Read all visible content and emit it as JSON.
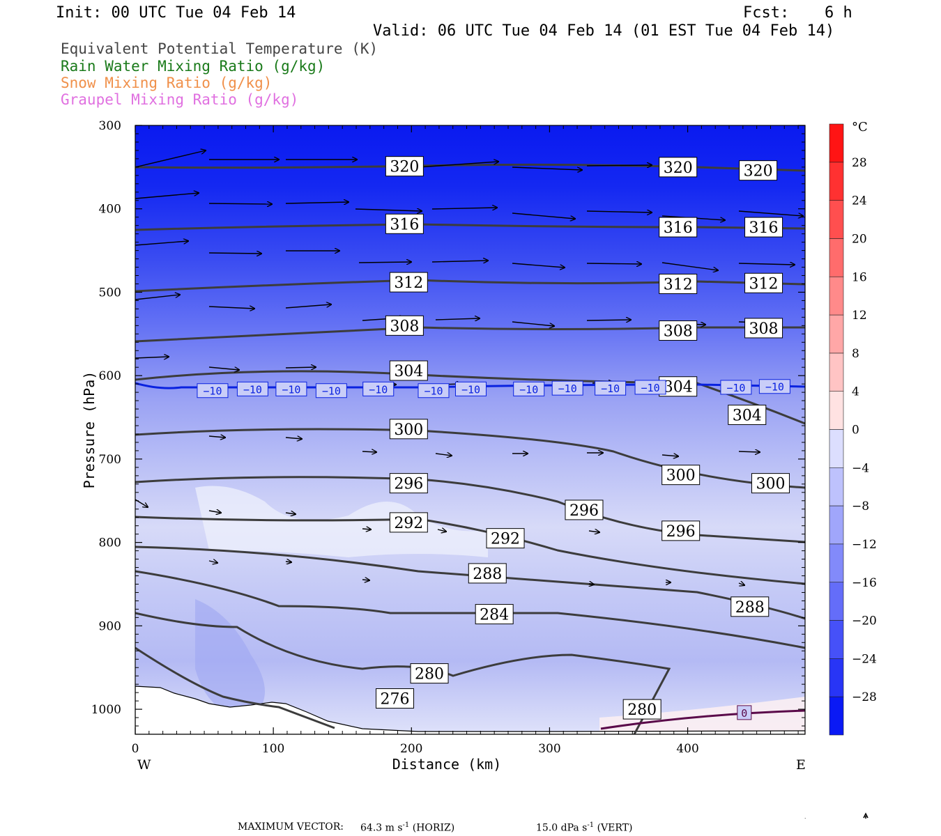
{
  "header": {
    "init": "Init: 00 UTC Tue 04 Feb 14",
    "fcst_label": "Fcst:",
    "fcst_value": "6 h",
    "valid": "Valid: 06 UTC Tue 04 Feb 14 (01 EST Tue 04 Feb 14)"
  },
  "fields": [
    {
      "label": "Equivalent Potential Temperature (K)",
      "color": "#444444"
    },
    {
      "label": "Rain Water Mixing Ratio (g/kg)",
      "color": "#1a7a1a"
    },
    {
      "label": "Snow Mixing Ratio (g/kg)",
      "color": "#f0904a"
    },
    {
      "label": "Graupel Mixing Ratio (g/kg)",
      "color": "#e070e0"
    }
  ],
  "footer": {
    "max_label": "MAXIMUM VECTOR:",
    "horiz_value": "64.3 m s",
    "horiz_exp": "-1",
    "horiz_suffix": "(HORIZ)",
    "vert_value": "15.0 dPa s",
    "vert_exp": "-1",
    "vert_suffix": "(VERT)"
  },
  "chart_data": {
    "type": "cross-section",
    "xlabel": "Distance (km)",
    "ylabel": "Pressure (hPa)",
    "xlim": [
      0,
      485
    ],
    "ylim": [
      1030,
      300
    ],
    "x_ticks": [
      0,
      100,
      200,
      300,
      400
    ],
    "y_ticks": [
      300,
      400,
      500,
      600,
      700,
      800,
      900,
      1000
    ],
    "left_end": "W",
    "right_end": "E",
    "colorbar": {
      "unit": "°C",
      "ticks": [
        "28",
        "24",
        "20",
        "16",
        "12",
        "8",
        "4",
        "0",
        "−4",
        "−8",
        "−12",
        "−16",
        "−20",
        "−24",
        "−28"
      ],
      "range": [
        -32,
        32
      ]
    },
    "theta_e_labels": [
      {
        "text": "320",
        "x": 195,
        "p": 349
      },
      {
        "text": "320",
        "x": 393,
        "p": 350
      },
      {
        "text": "320",
        "x": 451,
        "p": 354
      },
      {
        "text": "316",
        "x": 195,
        "p": 418
      },
      {
        "text": "316",
        "x": 393,
        "p": 422
      },
      {
        "text": "316",
        "x": 455,
        "p": 422
      },
      {
        "text": "312",
        "x": 198,
        "p": 488
      },
      {
        "text": "312",
        "x": 393,
        "p": 490
      },
      {
        "text": "312",
        "x": 455,
        "p": 489
      },
      {
        "text": "308",
        "x": 195,
        "p": 540
      },
      {
        "text": "308",
        "x": 393,
        "p": 546
      },
      {
        "text": "308",
        "x": 455,
        "p": 543
      },
      {
        "text": "304",
        "x": 198,
        "p": 594
      },
      {
        "text": "304",
        "x": 393,
        "p": 613
      },
      {
        "text": "304",
        "x": 443,
        "p": 647
      },
      {
        "text": "300",
        "x": 198,
        "p": 664
      },
      {
        "text": "300",
        "x": 395,
        "p": 719
      },
      {
        "text": "300",
        "x": 460,
        "p": 729
      },
      {
        "text": "296",
        "x": 198,
        "p": 729
      },
      {
        "text": "296",
        "x": 325,
        "p": 761
      },
      {
        "text": "296",
        "x": 395,
        "p": 786
      },
      {
        "text": "292",
        "x": 198,
        "p": 776
      },
      {
        "text": "292",
        "x": 268,
        "p": 795
      },
      {
        "text": "288",
        "x": 255,
        "p": 837
      },
      {
        "text": "288",
        "x": 445,
        "p": 877
      },
      {
        "text": "284",
        "x": 260,
        "p": 886
      },
      {
        "text": "280",
        "x": 213,
        "p": 957
      },
      {
        "text": "280",
        "x": 367,
        "p": 1000
      },
      {
        "text": "276",
        "x": 188,
        "p": 987
      }
    ],
    "temp_isotherm_labels": [
      {
        "text": "−10",
        "x": 56,
        "p": 618
      },
      {
        "text": "−10",
        "x": 85,
        "p": 616
      },
      {
        "text": "−10",
        "x": 113,
        "p": 616
      },
      {
        "text": "−10",
        "x": 142,
        "p": 618
      },
      {
        "text": "−10",
        "x": 176,
        "p": 616
      },
      {
        "text": "−10",
        "x": 216,
        "p": 618
      },
      {
        "text": "−10",
        "x": 243,
        "p": 616
      },
      {
        "text": "−10",
        "x": 285,
        "p": 616
      },
      {
        "text": "−10",
        "x": 313,
        "p": 615
      },
      {
        "text": "−10",
        "x": 344,
        "p": 615
      },
      {
        "text": "−10",
        "x": 373,
        "p": 614
      },
      {
        "text": "−10",
        "x": 435,
        "p": 614
      },
      {
        "text": "−10",
        "x": 463,
        "p": 613
      },
      {
        "text": "0",
        "x": 441,
        "p": 1004
      }
    ]
  }
}
